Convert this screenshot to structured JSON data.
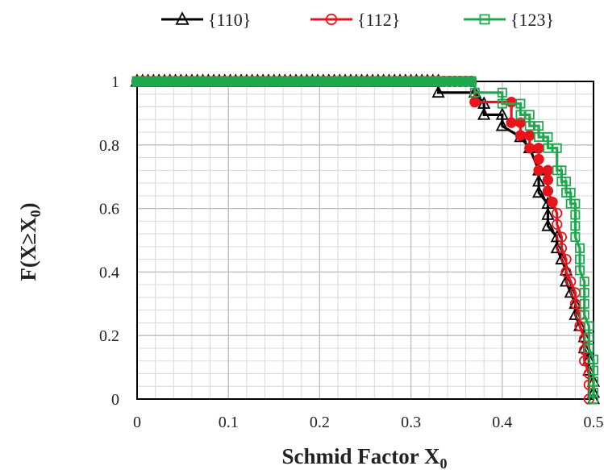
{
  "chart_data": {
    "type": "line",
    "xlabel": "Schmid Factor X",
    "xlabel_sub": "0",
    "ylabel_parts": [
      "F(X≥X",
      "0",
      ")"
    ],
    "xlim": [
      0,
      0.5
    ],
    "ylim": [
      0,
      1
    ],
    "x_ticks": [
      "0",
      "0.1",
      "0.2",
      "0.3",
      "0.4",
      "0.5"
    ],
    "y_ticks": [
      "0",
      "0.2",
      "0.4",
      "0.6",
      "0.8",
      "1"
    ],
    "grid": true,
    "minor_grid": true,
    "legend_position": "top",
    "series": [
      {
        "name": "{110}",
        "color": "#000000",
        "marker": "triangle",
        "points": [
          [
            0.0,
            1.0
          ],
          [
            0.33,
            1.0
          ],
          [
            0.33,
            0.965
          ],
          [
            0.37,
            0.965
          ],
          [
            0.38,
            0.93
          ],
          [
            0.38,
            0.895
          ],
          [
            0.4,
            0.895
          ],
          [
            0.4,
            0.86
          ],
          [
            0.42,
            0.825
          ],
          [
            0.43,
            0.79
          ],
          [
            0.44,
            0.72
          ],
          [
            0.44,
            0.685
          ],
          [
            0.44,
            0.65
          ],
          [
            0.45,
            0.615
          ],
          [
            0.45,
            0.58
          ],
          [
            0.45,
            0.545
          ],
          [
            0.46,
            0.51
          ],
          [
            0.46,
            0.475
          ],
          [
            0.465,
            0.44
          ],
          [
            0.47,
            0.405
          ],
          [
            0.47,
            0.37
          ],
          [
            0.475,
            0.335
          ],
          [
            0.48,
            0.3
          ],
          [
            0.48,
            0.265
          ],
          [
            0.485,
            0.23
          ],
          [
            0.49,
            0.195
          ],
          [
            0.49,
            0.16
          ],
          [
            0.495,
            0.125
          ],
          [
            0.495,
            0.09
          ],
          [
            0.5,
            0.055
          ],
          [
            0.5,
            0.02
          ],
          [
            0.5,
            0.0
          ]
        ]
      },
      {
        "name": "{112}",
        "color": "#e8141b",
        "marker": "circle",
        "points": [
          [
            0.0,
            1.0
          ],
          [
            0.37,
            1.0
          ],
          [
            0.37,
            0.935
          ],
          [
            0.41,
            0.935
          ],
          [
            0.41,
            0.87
          ],
          [
            0.42,
            0.87
          ],
          [
            0.42,
            0.83
          ],
          [
            0.43,
            0.83
          ],
          [
            0.43,
            0.79
          ],
          [
            0.44,
            0.79
          ],
          [
            0.44,
            0.755
          ],
          [
            0.44,
            0.72
          ],
          [
            0.45,
            0.72
          ],
          [
            0.45,
            0.69
          ],
          [
            0.45,
            0.655
          ],
          [
            0.455,
            0.62
          ],
          [
            0.46,
            0.585
          ],
          [
            0.46,
            0.55
          ],
          [
            0.465,
            0.51
          ],
          [
            0.465,
            0.475
          ],
          [
            0.47,
            0.44
          ],
          [
            0.47,
            0.4
          ],
          [
            0.475,
            0.37
          ],
          [
            0.48,
            0.335
          ],
          [
            0.48,
            0.3
          ],
          [
            0.485,
            0.265
          ],
          [
            0.485,
            0.23
          ],
          [
            0.49,
            0.19
          ],
          [
            0.49,
            0.155
          ],
          [
            0.49,
            0.12
          ],
          [
            0.495,
            0.08
          ],
          [
            0.495,
            0.045
          ],
          [
            0.495,
            0.0
          ]
        ]
      },
      {
        "name": "{123}",
        "color": "#1fa84f",
        "marker": "square",
        "points": [
          [
            0.0,
            1.0
          ],
          [
            0.37,
            1.0
          ],
          [
            0.37,
            0.965
          ],
          [
            0.4,
            0.965
          ],
          [
            0.4,
            0.93
          ],
          [
            0.42,
            0.93
          ],
          [
            0.42,
            0.895
          ],
          [
            0.43,
            0.895
          ],
          [
            0.43,
            0.86
          ],
          [
            0.44,
            0.86
          ],
          [
            0.44,
            0.825
          ],
          [
            0.45,
            0.825
          ],
          [
            0.45,
            0.79
          ],
          [
            0.46,
            0.79
          ],
          [
            0.46,
            0.72
          ],
          [
            0.465,
            0.72
          ],
          [
            0.465,
            0.685
          ],
          [
            0.47,
            0.685
          ],
          [
            0.47,
            0.65
          ],
          [
            0.475,
            0.65
          ],
          [
            0.475,
            0.615
          ],
          [
            0.48,
            0.615
          ],
          [
            0.48,
            0.58
          ],
          [
            0.48,
            0.545
          ],
          [
            0.48,
            0.51
          ],
          [
            0.485,
            0.475
          ],
          [
            0.485,
            0.44
          ],
          [
            0.485,
            0.405
          ],
          [
            0.49,
            0.37
          ],
          [
            0.49,
            0.335
          ],
          [
            0.49,
            0.3
          ],
          [
            0.49,
            0.265
          ],
          [
            0.495,
            0.23
          ],
          [
            0.495,
            0.195
          ],
          [
            0.495,
            0.16
          ],
          [
            0.5,
            0.125
          ],
          [
            0.5,
            0.09
          ],
          [
            0.5,
            0.055
          ],
          [
            0.5,
            0.02
          ],
          [
            0.5,
            0.0
          ]
        ]
      }
    ]
  }
}
